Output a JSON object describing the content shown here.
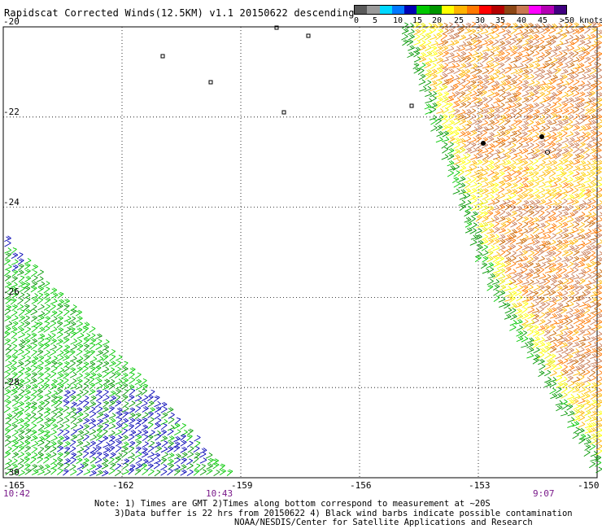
{
  "title": "Rapidscat Corrected Winds(12.5KM) v1.1 20150622 descending",
  "colorbar": {
    "colors": [
      "#5a5a5a",
      "#9a9a9a",
      "#00d8ff",
      "#0078ff",
      "#0000b4",
      "#00c800",
      "#009600",
      "#ffff00",
      "#ffb400",
      "#ff7800",
      "#ff0000",
      "#b40000",
      "#8c4614",
      "#c87850",
      "#ff00ff",
      "#b400b4",
      "#400080"
    ],
    "labels": [
      "0",
      "5",
      "10",
      "15",
      "20",
      "25",
      "30",
      "35",
      "40",
      "45",
      ">50 knots"
    ]
  },
  "axes": {
    "y_labels": [
      "-20",
      "-22",
      "-24",
      "-26",
      "-28",
      "-30"
    ],
    "x_labels": [
      "-165",
      "-162",
      "-159",
      "-156",
      "-153",
      "-150"
    ],
    "time_labels": [
      "10:42",
      "10:43",
      "9:07"
    ]
  },
  "notes": [
    "Note: 1) Times are GMT 2)Times along bottom correspond to measurement at ~20S",
    "3)Data buffer is 22 hrs from 20150622 4) Black wind barbs indicate possible contamination",
    "NOAA/NESDIS/Center for Satellite Applications and Research"
  ],
  "map": {
    "lon_range": [
      -165,
      -150
    ],
    "lat_range": [
      -30,
      -20
    ],
    "swaths": [
      {
        "name": "east-swath",
        "corners": [
          [
            -155.1,
            -20
          ],
          [
            -150,
            -20
          ],
          [
            -150,
            -30.1
          ],
          [
            -152.9,
            -25.7
          ]
        ],
        "speed_knots": "15-35"
      },
      {
        "name": "west-swath",
        "corners": [
          [
            -165,
            -24.7
          ],
          [
            -165,
            -30
          ],
          [
            -159.3,
            -30
          ]
        ],
        "speed_knots": "10-20"
      }
    ]
  }
}
